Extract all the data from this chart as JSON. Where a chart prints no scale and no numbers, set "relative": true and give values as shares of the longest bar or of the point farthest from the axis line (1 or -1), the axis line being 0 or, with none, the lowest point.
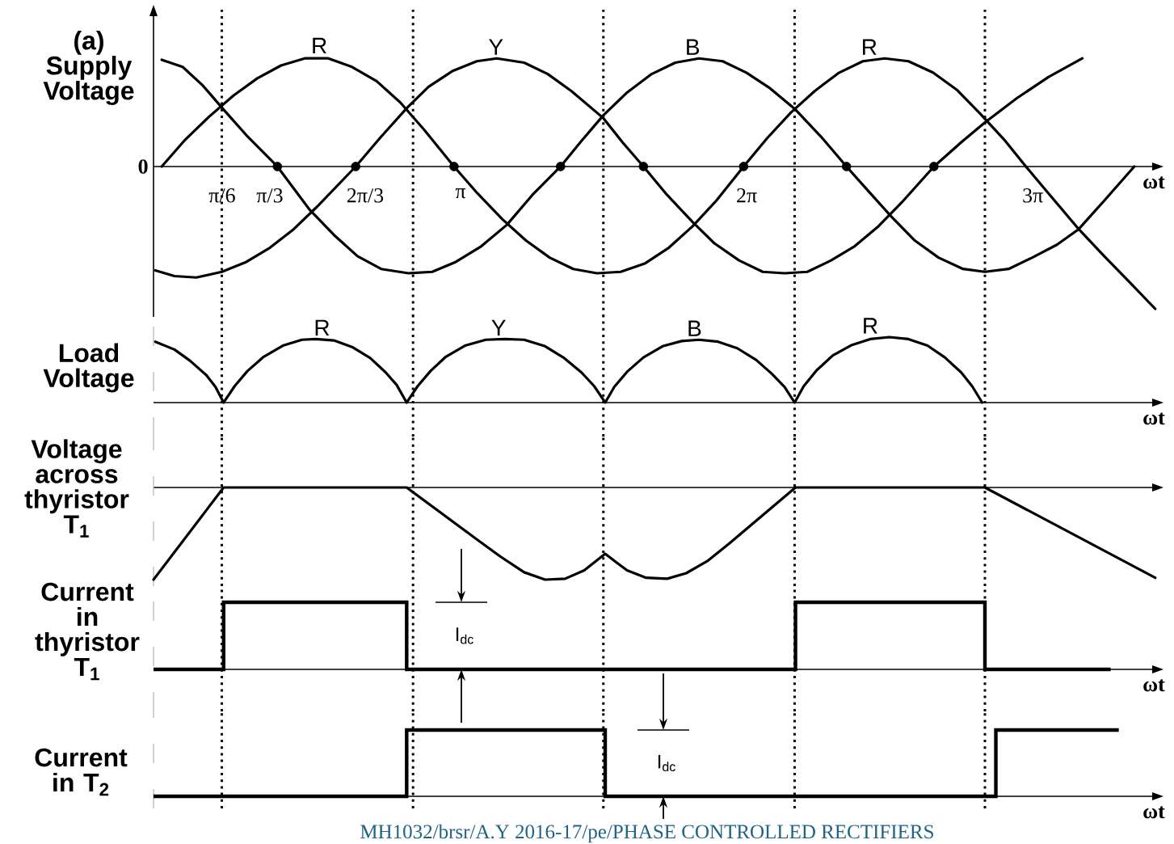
{
  "chart_data": [
    {
      "type": "line",
      "ylabel": "(a) Supply Voltage",
      "xlabel": "ωt",
      "relative": true,
      "xlim": [
        -0.23,
        10.79
      ],
      "xticks": [
        {
          "value": 0.5236,
          "label": "π/6"
        },
        {
          "value": 1.0472,
          "label": "π/3"
        },
        {
          "value": 2.0944,
          "label": "2π/3"
        },
        {
          "value": 3.1416,
          "label": "π"
        },
        {
          "value": 6.2832,
          "label": "2π"
        },
        {
          "value": 9.4248,
          "label": "3π"
        }
      ],
      "tick_labels": "x",
      "series": [
        {
          "color": "#000000",
          "x": [
            -0.14,
            0.12,
            0.38,
            0.65,
            0.91,
            1.17,
            1.43,
            1.69,
            1.95,
            2.22,
            2.48,
            2.74,
            3.07,
            3.33,
            3.6,
            3.86,
            4.12,
            4.38,
            4.64,
            4.9,
            5.17,
            5.43,
            5.69,
            5.95,
            6.25,
            6.51,
            6.77,
            7.03,
            7.3,
            7.56,
            7.8,
            8.06,
            8.33,
            8.59,
            8.85,
            9.11,
            9.35,
            9.6,
            9.93,
            10.21,
            10.47,
            10.77
          ],
          "values": [
            0,
            0.19,
            0.35,
            0.5,
            0.62,
            0.71,
            0.76,
            0.76,
            0.7,
            0.6,
            0.45,
            0.26,
            0,
            -0.19,
            -0.37,
            -0.52,
            -0.64,
            -0.72,
            -0.75,
            -0.74,
            -0.68,
            -0.57,
            -0.42,
            -0.24,
            0,
            0.2,
            0.38,
            0.53,
            0.66,
            0.74,
            0.76,
            0.74,
            0.66,
            0.54,
            0.37,
            0.19,
            0,
            -0.19,
            -0.44,
            -0.63,
            -0.8,
            -1
          ]
        },
        {
          "color": "#000000",
          "x": [
            -0.21,
            0,
            0.24,
            0.52,
            0.79,
            1.05,
            1.31,
            1.57,
            1.78,
            1.99,
            2.27,
            2.55,
            2.79,
            3.05,
            3.32,
            3.54,
            3.84,
            4.1,
            4.36,
            4.71,
            4.92,
            5.15,
            5.41,
            5.69,
            5.93,
            6.2,
            6.46,
            6.7,
            6.95,
            7.21,
            7.47,
            7.73,
            7.99,
            8.34,
            8.64,
            8.9,
            9.25,
            9.6,
            9.97
          ],
          "values": [
            -0.73,
            -0.77,
            -0.78,
            -0.74,
            -0.67,
            -0.57,
            -0.44,
            -0.28,
            -0.14,
            0,
            0.21,
            0.41,
            0.56,
            0.67,
            0.74,
            0.76,
            0.73,
            0.65,
            0.53,
            0.34,
            0.17,
            0,
            -0.2,
            -0.39,
            -0.54,
            -0.66,
            -0.74,
            -0.75,
            -0.74,
            -0.66,
            -0.56,
            -0.42,
            -0.25,
            0,
            0.17,
            0.31,
            0.48,
            0.63,
            0.76
          ]
        },
        {
          "color": "#000000",
          "x": [
            -0.14,
            0.09,
            0.31,
            0.54,
            0.79,
            1.13,
            1.48,
            1.75,
            2.01,
            2.27,
            2.57,
            2.83,
            3.09,
            3.37,
            3.65,
            3.93,
            4.24,
            4.47,
            4.71,
            4.97,
            5.24,
            5.5,
            5.76,
            6.02,
            6.28,
            6.54,
            6.82,
            7.1,
            7.38,
            7.63,
            7.87,
            8.13,
            8.39,
            8.66,
            8.9,
            9.16,
            9.42,
            9.69,
            9.93,
            10.21,
            10.54
          ],
          "values": [
            0.75,
            0.7,
            0.57,
            0.4,
            0.22,
            0,
            -0.3,
            -0.48,
            -0.63,
            -0.72,
            -0.75,
            -0.74,
            -0.67,
            -0.56,
            -0.41,
            -0.2,
            0,
            0.18,
            0.36,
            0.52,
            0.65,
            0.73,
            0.76,
            0.74,
            0.66,
            0.55,
            0.4,
            0.21,
            0,
            -0.18,
            -0.35,
            -0.52,
            -0.64,
            -0.72,
            -0.74,
            -0.72,
            -0.64,
            -0.55,
            -0.44,
            -0.24,
            0
          ]
        },
        {
          "type": "scatter",
          "marker": "circle",
          "color": "#000000",
          "x": [
            1.13,
            1.99,
            3.07,
            4.24,
            5.15,
            6.25,
            7.38,
            8.34
          ],
          "values": [
            0,
            0,
            0,
            0,
            0,
            0,
            0,
            0
          ]
        }
      ],
      "ref_lines": [
        {
          "axis": "x",
          "value": 0.52,
          "line_style": "dotted",
          "color": "#000000"
        },
        {
          "axis": "x",
          "value": 2.62,
          "line_style": "dotted",
          "color": "#000000"
        },
        {
          "axis": "x",
          "value": 4.71,
          "line_style": "dotted",
          "color": "#000000"
        },
        {
          "axis": "x",
          "value": 6.81,
          "line_style": "dotted",
          "color": "#000000"
        },
        {
          "axis": "x",
          "value": 8.9,
          "line_style": "dotted",
          "color": "#000000"
        }
      ],
      "annotations": [
        "0",
        {
          "text": "R",
          "x": 1.59,
          "y": 0.77
        },
        {
          "text": "Y",
          "x": 3.53,
          "y": 0.76
        },
        {
          "text": "B",
          "x": 5.69,
          "y": 0.76
        },
        {
          "text": "R",
          "x": 7.63,
          "y": 0.76
        }
      ]
    },
    {
      "type": "line",
      "ylabel": "Load Voltage",
      "xlabel": "ωt",
      "relative": true,
      "xlim": [
        -0.23,
        10.79
      ],
      "tick_labels": false,
      "series": [
        {
          "color": "#000000",
          "x": [
            -0.21,
            0,
            0.17,
            0.35,
            0.45,
            0.54,
            0.66,
            0.8,
            0.98,
            1.19,
            1.4,
            1.55,
            1.75,
            1.95,
            2.15,
            2.32,
            2.44,
            2.55,
            2.67,
            2.81,
            2.98,
            3.19,
            3.42,
            3.63,
            3.84,
            4.07,
            4.28,
            4.47,
            4.61,
            4.73,
            4.83,
            4.97,
            5.15,
            5.36,
            5.57,
            5.76,
            5.97,
            6.18,
            6.39,
            6.56,
            6.7,
            6.81,
            6.91,
            7.05,
            7.23,
            7.44,
            7.64,
            7.85,
            8.06,
            8.27,
            8.46,
            8.64,
            8.76,
            8.87
          ],
          "values": [
            0.93,
            0.81,
            0.64,
            0.42,
            0.24,
            0,
            0.25,
            0.48,
            0.7,
            0.87,
            0.96,
            0.97,
            0.95,
            0.85,
            0.68,
            0.46,
            0.27,
            0,
            0.25,
            0.48,
            0.7,
            0.87,
            0.96,
            0.97,
            0.96,
            0.86,
            0.68,
            0.46,
            0.25,
            0,
            0.24,
            0.47,
            0.69,
            0.86,
            0.94,
            0.96,
            0.93,
            0.83,
            0.65,
            0.44,
            0.24,
            0,
            0.25,
            0.49,
            0.72,
            0.88,
            0.97,
            1,
            0.97,
            0.87,
            0.69,
            0.46,
            0.25,
            0
          ]
        }
      ],
      "ref_lines": [
        {
          "axis": "x",
          "value": 0.52,
          "line_style": "dotted",
          "color": "#000000"
        },
        {
          "axis": "x",
          "value": 2.62,
          "line_style": "dotted",
          "color": "#000000"
        },
        {
          "axis": "x",
          "value": 4.71,
          "line_style": "dotted",
          "color": "#000000"
        },
        {
          "axis": "x",
          "value": 6.81,
          "line_style": "dotted",
          "color": "#000000"
        },
        {
          "axis": "x",
          "value": 8.9,
          "line_style": "dotted",
          "color": "#000000"
        }
      ],
      "annotations": [
        {
          "text": "R",
          "x": 1.62,
          "y": 0.97
        },
        {
          "text": "Y",
          "x": 3.56,
          "y": 0.97
        },
        {
          "text": "B",
          "x": 5.71,
          "y": 0.96
        },
        {
          "text": "R",
          "x": 7.64,
          "y": 1
        }
      ]
    },
    {
      "type": "line",
      "ylabel": "Voltage across thyristor T$_{1}$",
      "relative": true,
      "xlim": [
        -0.23,
        10.79
      ],
      "tick_labels": false,
      "series": [
        {
          "color": "#000000",
          "x": [
            -0.23,
            0.54,
            2.55,
            3.33,
            3.58,
            3.84,
            4.07,
            4.29,
            4.5,
            4.73,
            4.97,
            5.18,
            5.41,
            5.62,
            5.85,
            6.09,
            6.82,
            8.9,
            10.77
          ],
          "values": [
            -1,
            0,
            0,
            -0.57,
            -0.75,
            -0.92,
            -1,
            -0.99,
            -0.9,
            -0.72,
            -0.9,
            -0.98,
            -0.99,
            -0.93,
            -0.8,
            -0.61,
            0,
            0,
            -0.98
          ]
        }
      ],
      "ref_lines": [
        {
          "axis": "x",
          "value": 0.52,
          "line_style": "dotted",
          "color": "#000000"
        },
        {
          "axis": "x",
          "value": 2.62,
          "line_style": "dotted",
          "color": "#000000"
        },
        {
          "axis": "x",
          "value": 4.71,
          "line_style": "dotted",
          "color": "#000000"
        },
        {
          "axis": "x",
          "value": 6.81,
          "line_style": "dotted",
          "color": "#000000"
        },
        {
          "axis": "x",
          "value": 8.9,
          "line_style": "dotted",
          "color": "#000000"
        }
      ]
    },
    {
      "type": "step",
      "ylabel": "Current in thyristor T$_{1}$",
      "xlabel": "ωt",
      "relative": true,
      "xlim": [
        -0.23,
        10.79
      ],
      "tick_labels": false,
      "series": [
        {
          "color": "#000000",
          "x": [
            -0.23,
            0.54,
            2.55,
            6.82,
            8.9,
            10.28
          ],
          "values": [
            0,
            1,
            0,
            1,
            0,
            0
          ]
        }
      ],
      "ref_lines": [
        {
          "axis": "x",
          "value": 0.52,
          "line_style": "dotted",
          "color": "#000000"
        },
        {
          "axis": "x",
          "value": 2.62,
          "line_style": "dotted",
          "color": "#000000"
        },
        {
          "axis": "x",
          "value": 4.71,
          "line_style": "dotted",
          "color": "#000000"
        },
        {
          "axis": "x",
          "value": 6.81,
          "line_style": "dotted",
          "color": "#000000"
        },
        {
          "axis": "x",
          "value": 8.9,
          "line_style": "dotted",
          "color": "#000000"
        }
      ],
      "annotations": [
        "I$_{dc}$"
      ]
    },
    {
      "type": "step",
      "ylabel": "Current in T$_{2}$",
      "xlabel": "ωt",
      "relative": true,
      "xlim": [
        -0.23,
        10.79
      ],
      "tick_labels": false,
      "series": [
        {
          "color": "#000000",
          "x": [
            -0.23,
            2.55,
            4.73,
            9.02,
            10.37
          ],
          "values": [
            0,
            1,
            0,
            1,
            1
          ]
        }
      ],
      "ref_lines": [
        {
          "axis": "x",
          "value": 0.52,
          "line_style": "dotted",
          "color": "#000000"
        },
        {
          "axis": "x",
          "value": 2.62,
          "line_style": "dotted",
          "color": "#000000"
        },
        {
          "axis": "x",
          "value": 4.71,
          "line_style": "dotted",
          "color": "#000000"
        },
        {
          "axis": "x",
          "value": 6.81,
          "line_style": "dotted",
          "color": "#000000"
        },
        {
          "axis": "x",
          "value": 8.9,
          "line_style": "dotted",
          "color": "#000000"
        }
      ],
      "annotations": [
        "I$_{dc}$",
        "MH1032/brsr/A.Y 2016-17/pe/PHASE CONTROLLED RECTIFIERS"
      ]
    }
  ]
}
